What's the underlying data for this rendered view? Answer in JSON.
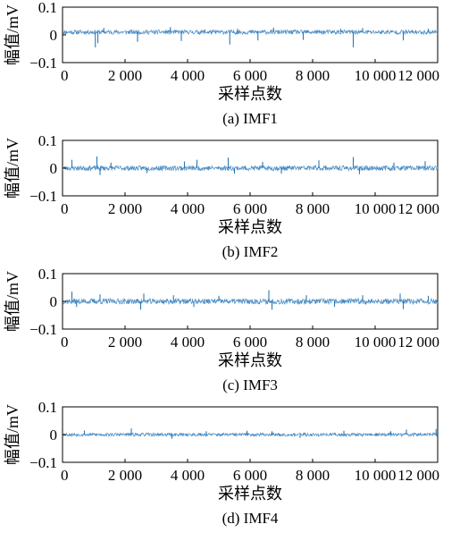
{
  "chart_data": [
    {
      "type": "line",
      "caption": "(a)  IMF1",
      "xlabel": "采样点数",
      "ylabel": "幅值/mV",
      "xlim": [
        0,
        12000
      ],
      "ylim": [
        -0.1,
        0.1
      ],
      "xticks": [
        0,
        2000,
        4000,
        6000,
        8000,
        10000,
        12000
      ],
      "xtick_labels": [
        "0",
        "2 000",
        "4 000",
        "6 000",
        "8 000",
        "10 000",
        "12 000"
      ],
      "yticks": [
        -0.1,
        0,
        0.1
      ],
      "ytick_labels": [
        "−0.1",
        "0",
        "0.1"
      ],
      "grid": false,
      "series_color": "#2a78b8",
      "baseline": 0.01,
      "noise_amplitude": 0.008,
      "seed": 11,
      "spikes": [
        [
          1050,
          -0.045
        ],
        [
          1130,
          -0.03
        ],
        [
          1320,
          0.025
        ],
        [
          2400,
          -0.025
        ],
        [
          3450,
          0.028
        ],
        [
          3800,
          -0.022
        ],
        [
          4550,
          0.02
        ],
        [
          5350,
          -0.035
        ],
        [
          5600,
          0.022
        ],
        [
          6250,
          -0.02
        ],
        [
          6750,
          0.026
        ],
        [
          7700,
          -0.018
        ],
        [
          8900,
          0.022
        ],
        [
          9300,
          -0.045
        ],
        [
          9600,
          0.025
        ],
        [
          10900,
          -0.02
        ],
        [
          11700,
          0.022
        ]
      ]
    },
    {
      "type": "line",
      "caption": "(b)  IMF2",
      "xlabel": "采样点数",
      "ylabel": "幅值/mV",
      "xlim": [
        0,
        12000
      ],
      "ylim": [
        -0.1,
        0.1
      ],
      "xticks": [
        0,
        2000,
        4000,
        6000,
        8000,
        10000,
        12000
      ],
      "xtick_labels": [
        "0",
        "2 000",
        "4 000",
        "6 000",
        "8 000",
        "10 000",
        "12 000"
      ],
      "yticks": [
        -0.1,
        0,
        0.1
      ],
      "ytick_labels": [
        "−0.1",
        "0",
        "0.1"
      ],
      "grid": false,
      "series_color": "#2a78b8",
      "baseline": 0.0,
      "noise_amplitude": 0.009,
      "seed": 23,
      "spikes": [
        [
          300,
          0.03
        ],
        [
          1100,
          0.042
        ],
        [
          1200,
          -0.025
        ],
        [
          1550,
          0.02
        ],
        [
          2700,
          -0.018
        ],
        [
          3900,
          0.024
        ],
        [
          4300,
          0.03
        ],
        [
          5300,
          0.038
        ],
        [
          5500,
          -0.02
        ],
        [
          6400,
          0.022
        ],
        [
          7000,
          -0.02
        ],
        [
          8200,
          0.028
        ],
        [
          9300,
          0.04
        ],
        [
          9500,
          -0.022
        ],
        [
          10600,
          0.02
        ],
        [
          11600,
          0.025
        ]
      ]
    },
    {
      "type": "line",
      "caption": "(c)  IMF3",
      "xlabel": "采样点数",
      "ylabel": "幅值/mV",
      "xlim": [
        0,
        12000
      ],
      "ylim": [
        -0.1,
        0.1
      ],
      "xticks": [
        0,
        2000,
        4000,
        6000,
        8000,
        10000,
        12000
      ],
      "xtick_labels": [
        "0",
        "2 000",
        "4 000",
        "6 000",
        "8 000",
        "10 000",
        "12 000"
      ],
      "yticks": [
        -0.1,
        0,
        0.1
      ],
      "ytick_labels": [
        "−0.1",
        "0",
        "0.1"
      ],
      "grid": false,
      "series_color": "#2a78b8",
      "baseline": 0.0,
      "noise_amplitude": 0.01,
      "seed": 37,
      "spikes": [
        [
          300,
          0.035
        ],
        [
          450,
          -0.02
        ],
        [
          1200,
          0.025
        ],
        [
          2500,
          -0.03
        ],
        [
          2600,
          0.028
        ],
        [
          3550,
          0.022
        ],
        [
          4200,
          -0.02
        ],
        [
          5000,
          0.02
        ],
        [
          6600,
          0.04
        ],
        [
          6700,
          -0.03
        ],
        [
          7800,
          0.022
        ],
        [
          8700,
          -0.02
        ],
        [
          9600,
          0.022
        ],
        [
          10800,
          0.028
        ],
        [
          10900,
          -0.028
        ],
        [
          11700,
          0.02
        ]
      ]
    },
    {
      "type": "line",
      "caption": "(d)  IMF4",
      "xlabel": "采样点数",
      "ylabel": "幅值/mV",
      "xlim": [
        0,
        12000
      ],
      "ylim": [
        -0.1,
        0.1
      ],
      "xticks": [
        0,
        2000,
        4000,
        6000,
        8000,
        10000,
        12000
      ],
      "xtick_labels": [
        "0",
        "2 000",
        "4 000",
        "6 000",
        "8 000",
        "10 000",
        "12 000"
      ],
      "yticks": [
        -0.1,
        0,
        0.1
      ],
      "ytick_labels": [
        "−0.1",
        "0",
        "0.1"
      ],
      "grid": false,
      "series_color": "#2a78b8",
      "baseline": 0.0,
      "noise_amplitude": 0.006,
      "seed": 53,
      "spikes": [
        [
          700,
          0.015
        ],
        [
          2200,
          0.022
        ],
        [
          3500,
          -0.015
        ],
        [
          4600,
          0.012
        ],
        [
          5900,
          0.014
        ],
        [
          6700,
          0.012
        ],
        [
          7600,
          -0.012
        ],
        [
          9000,
          0.014
        ],
        [
          10500,
          0.012
        ],
        [
          11000,
          0.018
        ],
        [
          11950,
          0.02
        ]
      ]
    }
  ]
}
